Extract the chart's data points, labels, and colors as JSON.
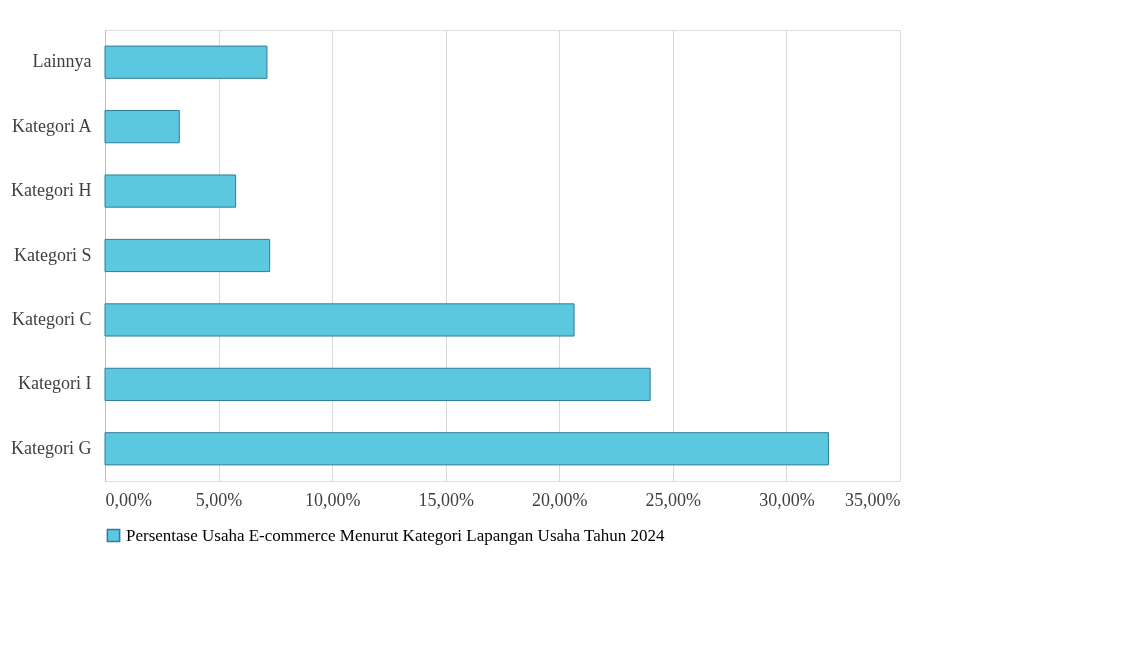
{
  "chart_data": {
    "type": "bar",
    "orientation": "horizontal",
    "categories": [
      "Lainnya",
      "Kategori A",
      "Kategori H",
      "Kategori S",
      "Kategori C",
      "Kategori I",
      "Kategori G"
    ],
    "series": [
      {
        "name": "Persentase Usaha E-commerce Menurut Kategori Lapangan Usaha Tahun 2024",
        "color": "#5bc8e0",
        "values": [
          7.13,
          3.27,
          5.75,
          7.25,
          20.65,
          24.0,
          31.85
        ]
      }
    ],
    "xlim": [
      0,
      35
    ],
    "xticks": [
      {
        "value": 0,
        "label": "0,00%"
      },
      {
        "value": 5,
        "label": "5,00%"
      },
      {
        "value": 10,
        "label": "10,00%"
      },
      {
        "value": 15,
        "label": "15,00%"
      },
      {
        "value": 20,
        "label": "20,00%"
      },
      {
        "value": 25,
        "label": "25,00%"
      },
      {
        "value": 30,
        "label": "30,00%"
      },
      {
        "value": 35,
        "label": "35,00%"
      }
    ],
    "grid": "x",
    "legend": "bottom"
  }
}
